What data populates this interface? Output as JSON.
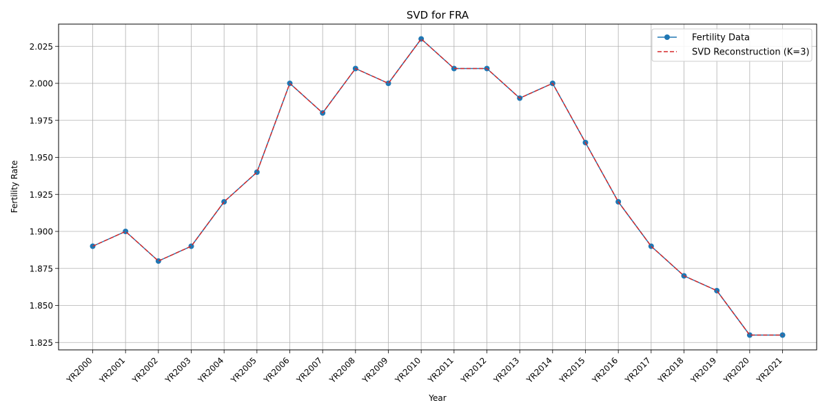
{
  "chart_data": {
    "type": "line",
    "title": "SVD for FRA",
    "xlabel": "Year",
    "ylabel": "Fertility Rate",
    "categories": [
      "YR2000",
      "YR2001",
      "YR2002",
      "YR2003",
      "YR2004",
      "YR2005",
      "YR2006",
      "YR2007",
      "YR2008",
      "YR2009",
      "YR2010",
      "YR2011",
      "YR2012",
      "YR2013",
      "YR2014",
      "YR2015",
      "YR2016",
      "YR2017",
      "YR2018",
      "YR2019",
      "YR2020",
      "YR2021"
    ],
    "ylim": [
      1.82,
      2.04
    ],
    "yticks": [
      1.825,
      1.85,
      1.875,
      1.9,
      1.925,
      1.95,
      1.975,
      2.0,
      2.025
    ],
    "ytick_labels": [
      "1.825",
      "1.850",
      "1.875",
      "1.900",
      "1.925",
      "1.950",
      "1.975",
      "2.000",
      "2.025"
    ],
    "grid": true,
    "legend_position": "top-right",
    "series": [
      {
        "name": "Fertility Data",
        "color": "#1f77b4",
        "line_style": "solid",
        "marker": "circle",
        "values": [
          1.89,
          1.9,
          1.88,
          1.89,
          1.92,
          1.94,
          2.0,
          1.98,
          2.01,
          2.0,
          2.03,
          2.01,
          2.01,
          1.99,
          2.0,
          1.96,
          1.92,
          1.89,
          1.87,
          1.86,
          1.83,
          1.83
        ]
      },
      {
        "name": "SVD Reconstruction (K=3)",
        "color": "#d62728",
        "line_style": "dashed",
        "marker": "none",
        "values": [
          1.89,
          1.9,
          1.88,
          1.89,
          1.92,
          1.94,
          2.0,
          1.98,
          2.01,
          2.0,
          2.03,
          2.01,
          2.01,
          1.99,
          2.0,
          1.96,
          1.92,
          1.89,
          1.87,
          1.86,
          1.83,
          1.83
        ]
      }
    ]
  }
}
